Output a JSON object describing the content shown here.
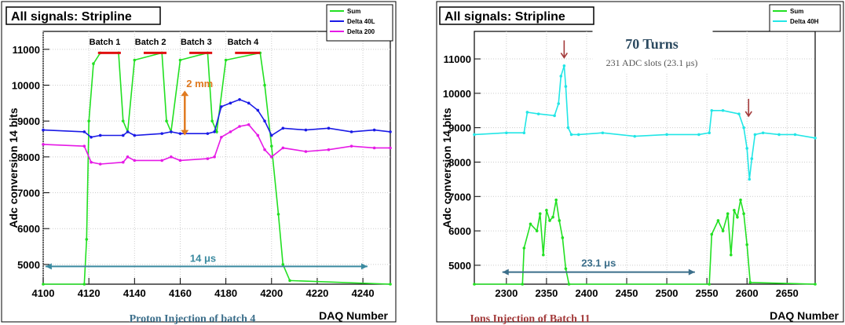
{
  "chart_data": [
    {
      "type": "line",
      "title": "All signals: Stripline",
      "xlabel": "DAQ Number",
      "ylabel": "Adc conversion 14 bits",
      "xlim": [
        4100,
        4252
      ],
      "ylim": [
        4450,
        11500
      ],
      "xticks": [
        4100,
        4120,
        4140,
        4160,
        4180,
        4200,
        4220,
        4240
      ],
      "yticks": [
        5000,
        6000,
        7000,
        8000,
        9000,
        10000,
        11000
      ],
      "grid": true,
      "legend_position": "top-right",
      "series": [
        {
          "name": "Sum",
          "color": "#22e022",
          "x": [
            4100,
            4118,
            4119,
            4120,
            4122,
            4125,
            4133,
            4135,
            4137,
            4140,
            4152,
            4154,
            4156,
            4160,
            4172,
            4174,
            4176,
            4180,
            4195,
            4197,
            4200,
            4203,
            4205,
            4208,
            4252
          ],
          "values": [
            4450,
            4450,
            5700,
            9000,
            10600,
            10900,
            10900,
            9000,
            8700,
            10700,
            10900,
            9000,
            8700,
            10700,
            10900,
            9000,
            8700,
            10700,
            10900,
            10000,
            8300,
            6400,
            5000,
            4550,
            4450
          ]
        },
        {
          "name": "Delta 40L",
          "color": "#1a1ae6",
          "x": [
            4100,
            4118,
            4121,
            4125,
            4135,
            4137,
            4140,
            4152,
            4156,
            4160,
            4172,
            4175,
            4178,
            4182,
            4186,
            4190,
            4194,
            4197,
            4200,
            4205,
            4215,
            4225,
            4235,
            4245,
            4252
          ],
          "values": [
            8750,
            8700,
            8550,
            8600,
            8600,
            8700,
            8600,
            8650,
            8700,
            8650,
            8650,
            8700,
            9400,
            9500,
            9600,
            9500,
            9300,
            9000,
            8600,
            8800,
            8750,
            8800,
            8700,
            8750,
            8700
          ]
        },
        {
          "name": "Delta 200",
          "color": "#e61ae6",
          "x": [
            4100,
            4118,
            4121,
            4125,
            4135,
            4137,
            4140,
            4152,
            4156,
            4160,
            4172,
            4175,
            4178,
            4182,
            4186,
            4190,
            4194,
            4197,
            4200,
            4205,
            4215,
            4225,
            4235,
            4245,
            4252
          ],
          "values": [
            8350,
            8300,
            7850,
            7800,
            7850,
            8000,
            7900,
            7900,
            8000,
            7900,
            7950,
            8000,
            8550,
            8700,
            8850,
            8900,
            8600,
            8200,
            8000,
            8250,
            8150,
            8200,
            8300,
            8250,
            8250
          ]
        }
      ],
      "annotations": {
        "batches": [
          "Batch 1",
          "Batch 2",
          "Batch 3",
          "Batch 4"
        ],
        "gap_label": "2 mm",
        "duration_label": "14 μs",
        "caption": "Proton Injection of batch 4"
      }
    },
    {
      "type": "line",
      "title": "All signals: Stripline",
      "xlabel": "DAQ Number",
      "ylabel": "Adc conversion 14 bits",
      "xlim": [
        2260,
        2685
      ],
      "ylim": [
        4450,
        11800
      ],
      "xticks": [
        2300,
        2350,
        2400,
        2450,
        2500,
        2550,
        2600,
        2650
      ],
      "yticks": [
        5000,
        6000,
        7000,
        8000,
        9000,
        10000,
        11000
      ],
      "grid": true,
      "legend_position": "top-right",
      "series": [
        {
          "name": "Sum",
          "color": "#22e022",
          "x": [
            2260,
            2320,
            2322,
            2330,
            2338,
            2342,
            2346,
            2350,
            2354,
            2358,
            2362,
            2366,
            2370,
            2374,
            2378,
            2553,
            2556,
            2564,
            2570,
            2576,
            2580,
            2584,
            2588,
            2592,
            2596,
            2600,
            2604,
            2685
          ],
          "values": [
            4450,
            4450,
            5500,
            6200,
            6000,
            6500,
            5300,
            6600,
            6300,
            6400,
            6900,
            6300,
            5800,
            4900,
            4450,
            4450,
            5900,
            6300,
            6000,
            6500,
            5300,
            6600,
            6400,
            6900,
            6500,
            5600,
            4500,
            4450
          ]
        },
        {
          "name": "Delta 40H",
          "color": "#22e6e6",
          "x": [
            2260,
            2300,
            2322,
            2326,
            2340,
            2360,
            2365,
            2368,
            2372,
            2374,
            2377,
            2381,
            2390,
            2420,
            2460,
            2500,
            2540,
            2553,
            2556,
            2570,
            2590,
            2596,
            2600,
            2603,
            2606,
            2610,
            2620,
            2640,
            2660,
            2685
          ],
          "values": [
            8800,
            8850,
            8850,
            9450,
            9400,
            9350,
            9700,
            10500,
            10800,
            10200,
            9000,
            8800,
            8800,
            8850,
            8750,
            8800,
            8800,
            8850,
            9500,
            9500,
            9400,
            9000,
            8400,
            7500,
            8100,
            8800,
            8850,
            8800,
            8800,
            8700
          ]
        }
      ],
      "annotations": {
        "turns_label": "70 Turns",
        "slots_label": "231 ADC slots (23.1 μs)",
        "duration_label": "23.1 μs",
        "caption": "Ions Injection of Batch 11"
      }
    }
  ]
}
